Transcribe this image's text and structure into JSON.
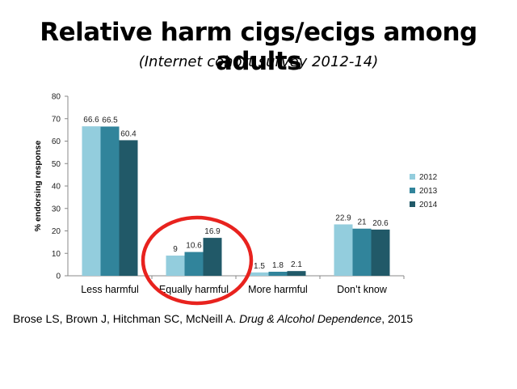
{
  "slide": {
    "title": "Relative harm cigs/ecigs among adults",
    "subtitle": "(Internet cohort survey 2012-14)",
    "citation": {
      "authors": "Brose LS, Brown J, Hitchman SC, McNeill A. ",
      "journal": "Drug & Alcohol Dependence",
      "year": ", 2015"
    }
  },
  "chart_data": {
    "type": "bar",
    "ylabel": "% endorsing response",
    "xlabel": "",
    "ylim": [
      0,
      80
    ],
    "yticks": [
      "0",
      "10",
      "20",
      "30",
      "40",
      "50",
      "60",
      "70",
      "80"
    ],
    "categories": [
      "Less harmful",
      "Equally harmful",
      "More harmful",
      "Don’t know"
    ],
    "series": [
      {
        "name": "2012",
        "color": "#93cddd",
        "values": [
          66.6,
          9,
          1.5,
          22.9
        ],
        "labels": [
          "66.6",
          "9",
          "1.5",
          "22.9"
        ]
      },
      {
        "name": "2013",
        "color": "#31849b",
        "values": [
          66.5,
          10.6,
          1.8,
          21
        ],
        "labels": [
          "66.5",
          "10.6",
          "1.8",
          "21"
        ]
      },
      {
        "name": "2014",
        "color": "#215968",
        "values": [
          60.4,
          16.9,
          2.1,
          20.6
        ],
        "labels": [
          "60.4",
          "16.9",
          "2.1",
          "20.6"
        ]
      }
    ],
    "gridlines": false,
    "legend_position": "right",
    "annotation": {
      "shape": "ellipse",
      "color": "#e8221e",
      "highlights": "Equally harmful"
    }
  }
}
